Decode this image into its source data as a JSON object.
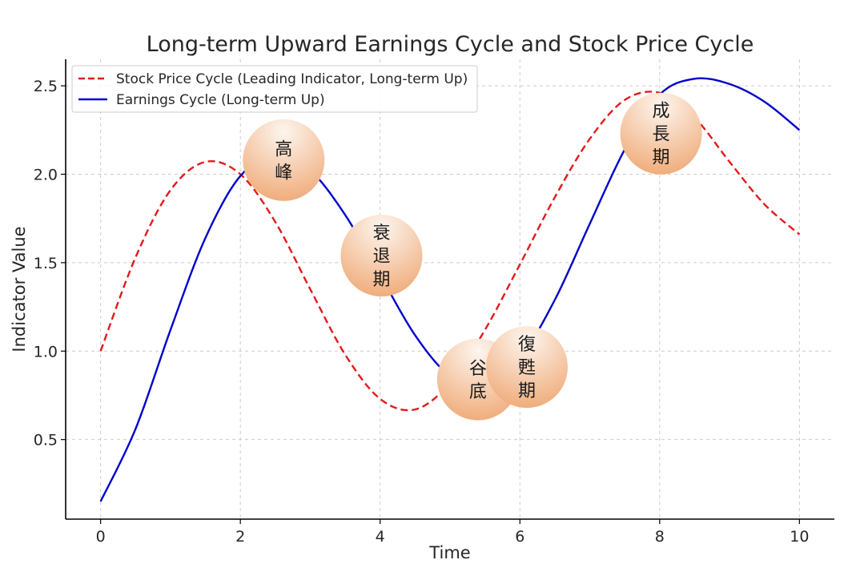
{
  "chart_data": {
    "type": "line",
    "title": "Long-term Upward Earnings Cycle and Stock Price Cycle",
    "xlabel": "Time",
    "ylabel": "Indicator Value",
    "xlim": [
      -0.5,
      10.5
    ],
    "ylim": [
      0.05,
      2.65
    ],
    "xticks": [
      0,
      2,
      4,
      6,
      8,
      10
    ],
    "xtick_labels": [
      "0",
      "2",
      "4",
      "6",
      "8",
      "10"
    ],
    "yticks": [
      0.5,
      1.0,
      1.5,
      2.0,
      2.5
    ],
    "ytick_labels": [
      "0.5",
      "1.0",
      "1.5",
      "2.0",
      "2.5"
    ],
    "grid": true,
    "legend_position": "top-left",
    "series": [
      {
        "name": "Stock Price Cycle (Leading Indicator, Long-term Up)",
        "color": "#e31a1c",
        "style": "dashed",
        "x": [
          0,
          0.5,
          1,
          1.5,
          2,
          2.5,
          3,
          3.5,
          4,
          4.5,
          5,
          5.5,
          6,
          6.5,
          7,
          7.5,
          8,
          8.5,
          9,
          9.5,
          10
        ],
        "y": [
          1.0,
          1.53,
          1.91,
          2.07,
          2.0,
          1.73,
          1.35,
          0.98,
          0.73,
          0.67,
          0.82,
          1.12,
          1.49,
          1.87,
          2.2,
          2.42,
          2.46,
          2.32,
          2.07,
          1.83,
          1.66
        ]
      },
      {
        "name": "Earnings Cycle (Long-term Up)",
        "color": "#0000cc",
        "style": "solid",
        "x": [
          0,
          0.5,
          1,
          1.5,
          2,
          2.5,
          3,
          3.5,
          4,
          4.5,
          5,
          5.5,
          6,
          6.5,
          7,
          7.5,
          8,
          8.5,
          9,
          9.5,
          10
        ],
        "y": [
          0.15,
          0.56,
          1.12,
          1.64,
          1.99,
          2.1,
          2.02,
          1.77,
          1.43,
          1.09,
          0.86,
          0.81,
          0.96,
          1.29,
          1.72,
          2.14,
          2.45,
          2.54,
          2.51,
          2.41,
          2.25
        ]
      }
    ],
    "annotations": [
      {
        "label": [
          "高",
          "峰"
        ],
        "x": 2.62,
        "y": 2.08
      },
      {
        "label": [
          "衰",
          "退",
          "期"
        ],
        "x": 4.02,
        "y": 1.54
      },
      {
        "label": [
          "谷",
          "底"
        ],
        "x": 5.4,
        "y": 0.84
      },
      {
        "label": [
          "復",
          "甦",
          "期"
        ],
        "x": 6.1,
        "y": 0.91
      },
      {
        "label": [
          "成",
          "長",
          "期"
        ],
        "x": 8.02,
        "y": 2.23
      }
    ]
  }
}
